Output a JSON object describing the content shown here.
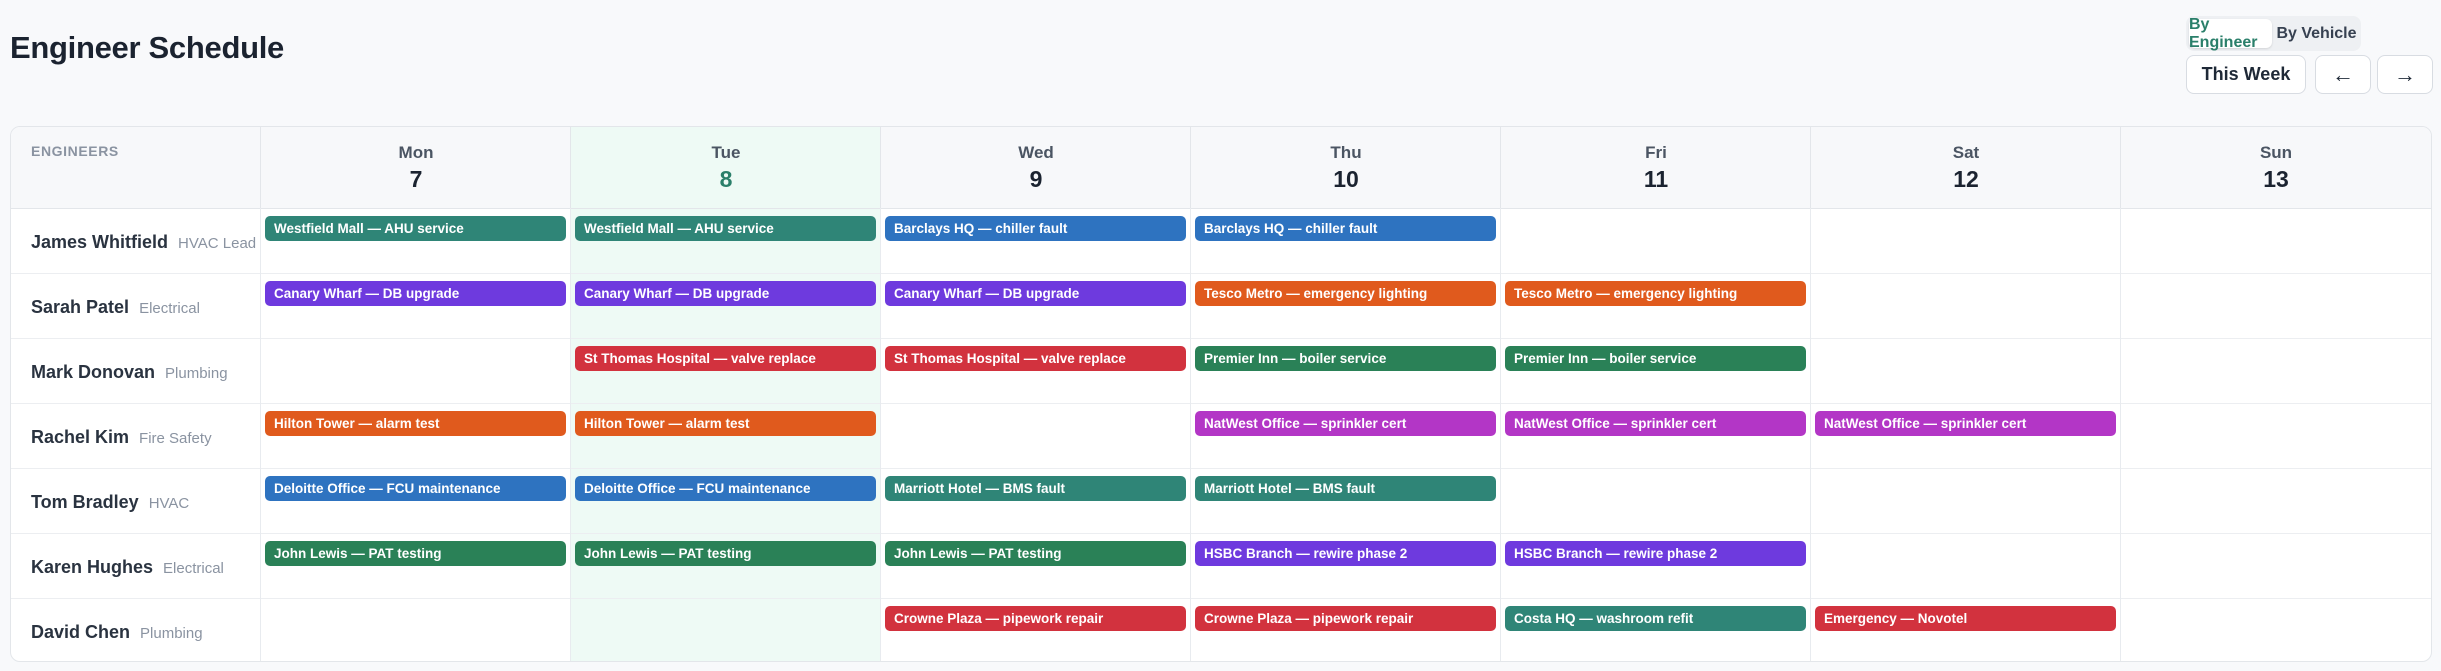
{
  "page": {
    "title": "Engineer Schedule"
  },
  "toolbar": {
    "view_options": [
      "By Engineer",
      "By Vehicle"
    ],
    "active_view": "By Engineer",
    "week_label": "This Week",
    "prev_label": "←",
    "next_label": "→"
  },
  "schedule": {
    "engineers_header": "ENGINEERS",
    "today_index": 1,
    "days": [
      {
        "name": "Mon",
        "date": "7"
      },
      {
        "name": "Tue",
        "date": "8"
      },
      {
        "name": "Wed",
        "date": "9"
      },
      {
        "name": "Thu",
        "date": "10"
      },
      {
        "name": "Fri",
        "date": "11"
      },
      {
        "name": "Sat",
        "date": "12"
      },
      {
        "name": "Sun",
        "date": "13"
      }
    ],
    "colors": {
      "teal": "#2f8577",
      "blue": "#2e73c0",
      "purple": "#6e3ade",
      "orange": "#e05a1d",
      "red": "#d2323e",
      "green": "#2a8157",
      "magenta": "#b336c6"
    },
    "engineers": [
      {
        "name": "James Whitfield",
        "role": "HVAC Lead",
        "jobs": [
          {
            "day": 0,
            "title": "Westfield Mall — AHU service",
            "color": "teal"
          },
          {
            "day": 1,
            "title": "Westfield Mall — AHU service",
            "color": "teal"
          },
          {
            "day": 2,
            "title": "Barclays HQ — chiller fault",
            "color": "blue"
          },
          {
            "day": 3,
            "title": "Barclays HQ — chiller fault",
            "color": "blue"
          }
        ]
      },
      {
        "name": "Sarah Patel",
        "role": "Electrical",
        "jobs": [
          {
            "day": 0,
            "title": "Canary Wharf — DB upgrade",
            "color": "purple"
          },
          {
            "day": 1,
            "title": "Canary Wharf — DB upgrade",
            "color": "purple"
          },
          {
            "day": 2,
            "title": "Canary Wharf — DB upgrade",
            "color": "purple"
          },
          {
            "day": 3,
            "title": "Tesco Metro — emergency lighting",
            "color": "orange"
          },
          {
            "day": 4,
            "title": "Tesco Metro — emergency lighting",
            "color": "orange"
          }
        ]
      },
      {
        "name": "Mark Donovan",
        "role": "Plumbing",
        "jobs": [
          {
            "day": 1,
            "title": "St Thomas Hospital — valve replace",
            "color": "red"
          },
          {
            "day": 2,
            "title": "St Thomas Hospital — valve replace",
            "color": "red"
          },
          {
            "day": 3,
            "title": "Premier Inn — boiler service",
            "color": "green"
          },
          {
            "day": 4,
            "title": "Premier Inn — boiler service",
            "color": "green"
          }
        ]
      },
      {
        "name": "Rachel Kim",
        "role": "Fire Safety",
        "jobs": [
          {
            "day": 0,
            "title": "Hilton Tower — alarm test",
            "color": "orange"
          },
          {
            "day": 1,
            "title": "Hilton Tower — alarm test",
            "color": "orange"
          },
          {
            "day": 3,
            "title": "NatWest Office — sprinkler cert",
            "color": "magenta"
          },
          {
            "day": 4,
            "title": "NatWest Office — sprinkler cert",
            "color": "magenta"
          },
          {
            "day": 5,
            "title": "NatWest Office — sprinkler cert",
            "color": "magenta"
          }
        ]
      },
      {
        "name": "Tom Bradley",
        "role": "HVAC",
        "jobs": [
          {
            "day": 0,
            "title": "Deloitte Office — FCU maintenance",
            "color": "blue"
          },
          {
            "day": 1,
            "title": "Deloitte Office — FCU maintenance",
            "color": "blue"
          },
          {
            "day": 2,
            "title": "Marriott Hotel — BMS fault",
            "color": "teal"
          },
          {
            "day": 3,
            "title": "Marriott Hotel — BMS fault",
            "color": "teal"
          }
        ]
      },
      {
        "name": "Karen Hughes",
        "role": "Electrical",
        "jobs": [
          {
            "day": 0,
            "title": "John Lewis — PAT testing",
            "color": "green"
          },
          {
            "day": 1,
            "title": "John Lewis — PAT testing",
            "color": "green"
          },
          {
            "day": 2,
            "title": "John Lewis — PAT testing",
            "color": "green"
          },
          {
            "day": 3,
            "title": "HSBC Branch — rewire phase 2",
            "color": "purple"
          },
          {
            "day": 4,
            "title": "HSBC Branch — rewire phase 2",
            "color": "purple"
          }
        ]
      },
      {
        "name": "David Chen",
        "role": "Plumbing",
        "jobs": [
          {
            "day": 2,
            "title": "Crowne Plaza — pipework repair",
            "color": "red"
          },
          {
            "day": 3,
            "title": "Crowne Plaza — pipework repair",
            "color": "red"
          },
          {
            "day": 4,
            "title": "Costa HQ — washroom refit",
            "color": "teal"
          },
          {
            "day": 5,
            "title": "Emergency — Novotel",
            "color": "red"
          }
        ]
      }
    ]
  }
}
